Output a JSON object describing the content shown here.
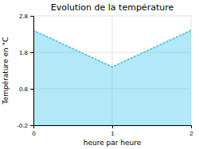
{
  "chart_data": {
    "type": "area",
    "title": "Evolution de la température",
    "xlabel": "heure par heure",
    "ylabel": "Température en °C",
    "x": [
      0,
      1,
      2
    ],
    "values": [
      2.4,
      1.4,
      2.4
    ],
    "color": "#55ccee",
    "line_style": "dotted",
    "xlim": [
      0,
      2
    ],
    "ylim": [
      -0.2,
      2.8
    ],
    "xticks": [
      0,
      1,
      2
    ],
    "yticks": [
      -0.2,
      0.8,
      1.8,
      2.8
    ],
    "grid": true
  }
}
